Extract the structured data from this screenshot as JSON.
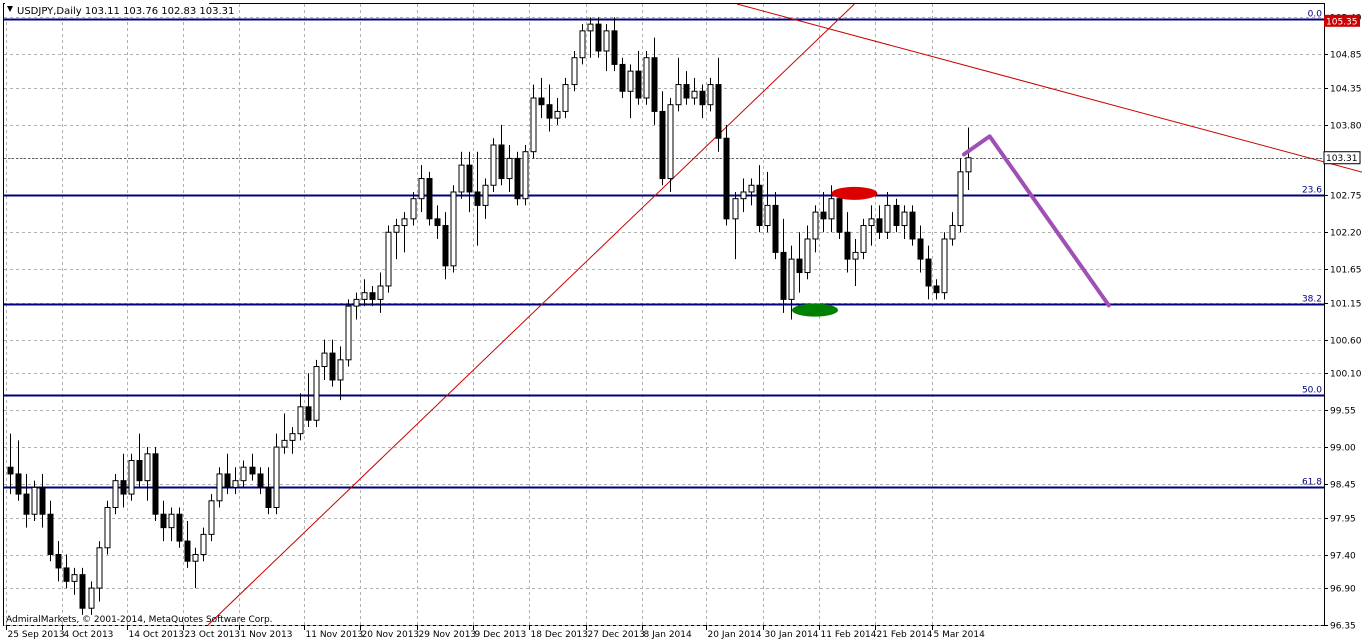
{
  "chart_data": {
    "type": "candlestick",
    "symbol_header": "USDJPY,Daily  103.11 103.76 102.83 103.31",
    "copyright": "AdmiralMarkets, © 2001-2014, MetaQuotes Software Corp.",
    "current_price_label": "103.31",
    "high_price_label": "105.35",
    "ylim": [
      96.35,
      105.6
    ],
    "y_ticks": [
      "105.40",
      "104.85",
      "104.35",
      "103.80",
      "103.31",
      "102.75",
      "102.20",
      "101.65",
      "101.15",
      "100.60",
      "100.10",
      "99.55",
      "99.00",
      "98.45",
      "97.95",
      "97.40",
      "96.90",
      "96.35"
    ],
    "x_ticks": [
      {
        "label": "25 Sep 2013",
        "bar": 0
      },
      {
        "label": "4 Oct 2013",
        "bar": 7
      },
      {
        "label": "14 Oct 2013",
        "bar": 15
      },
      {
        "label": "23 Oct 2013",
        "bar": 22
      },
      {
        "label": "1 Nov 2013",
        "bar": 29
      },
      {
        "label": "11 Nov 2013",
        "bar": 37
      },
      {
        "label": "20 Nov 2013",
        "bar": 44
      },
      {
        "label": "29 Nov 2013",
        "bar": 51
      },
      {
        "label": "9 Dec 2013",
        "bar": 58
      },
      {
        "label": "18 Dec 2013",
        "bar": 65
      },
      {
        "label": "27 Dec 2013",
        "bar": 72
      },
      {
        "label": "8 Jan 2014",
        "bar": 79
      },
      {
        "label": "20 Jan 2014",
        "bar": 87
      },
      {
        "label": "30 Jan 2014",
        "bar": 94
      },
      {
        "label": "11 Feb 2014",
        "bar": 101
      },
      {
        "label": "21 Feb 2014",
        "bar": 108
      },
      {
        "label": "5 Mar 2014",
        "bar": 115
      }
    ],
    "fib_levels": [
      {
        "label": "0.0",
        "price": 105.38
      },
      {
        "label": "23.6",
        "price": 102.76
      },
      {
        "label": "38.2",
        "price": 101.13
      },
      {
        "label": "50.0",
        "price": 99.77
      },
      {
        "label": "61.8",
        "price": 98.41
      }
    ],
    "candles": [
      [
        98.7,
        99.2,
        98.3,
        98.6
      ],
      [
        98.6,
        99.1,
        98.2,
        98.3
      ],
      [
        98.3,
        98.6,
        97.8,
        98.0
      ],
      [
        98.0,
        98.5,
        97.9,
        98.4
      ],
      [
        98.4,
        98.6,
        97.8,
        98.0
      ],
      [
        98.0,
        98.2,
        97.3,
        97.4
      ],
      [
        97.4,
        97.6,
        97.0,
        97.2
      ],
      [
        97.2,
        97.4,
        96.9,
        97.0
      ],
      [
        97.0,
        97.2,
        96.8,
        97.1
      ],
      [
        97.1,
        97.2,
        96.5,
        96.6
      ],
      [
        96.6,
        97.0,
        96.5,
        96.9
      ],
      [
        96.9,
        97.6,
        96.7,
        97.5
      ],
      [
        97.5,
        98.2,
        97.4,
        98.1
      ],
      [
        98.1,
        98.6,
        98.0,
        98.5
      ],
      [
        98.5,
        98.9,
        98.1,
        98.3
      ],
      [
        98.3,
        98.9,
        98.2,
        98.8
      ],
      [
        98.8,
        99.2,
        98.4,
        98.5
      ],
      [
        98.5,
        99.0,
        98.2,
        98.9
      ],
      [
        98.9,
        99.0,
        97.9,
        98.0
      ],
      [
        98.0,
        98.2,
        97.6,
        97.8
      ],
      [
        97.8,
        98.1,
        97.6,
        98.0
      ],
      [
        98.0,
        98.1,
        97.5,
        97.6
      ],
      [
        97.6,
        97.9,
        97.2,
        97.3
      ],
      [
        97.3,
        97.5,
        96.9,
        97.4
      ],
      [
        97.4,
        97.8,
        97.3,
        97.7
      ],
      [
        97.7,
        98.3,
        97.6,
        98.2
      ],
      [
        98.2,
        98.7,
        98.1,
        98.6
      ],
      [
        98.6,
        98.9,
        98.3,
        98.4
      ],
      [
        98.4,
        98.7,
        98.3,
        98.5
      ],
      [
        98.5,
        98.8,
        98.4,
        98.7
      ],
      [
        98.7,
        98.9,
        98.5,
        98.6
      ],
      [
        98.6,
        98.7,
        98.3,
        98.4
      ],
      [
        98.4,
        98.7,
        98.0,
        98.1
      ],
      [
        98.1,
        99.2,
        98.0,
        99.0
      ],
      [
        99.0,
        99.5,
        98.9,
        99.1
      ],
      [
        99.1,
        99.3,
        98.9,
        99.2
      ],
      [
        99.2,
        99.8,
        99.1,
        99.6
      ],
      [
        99.6,
        100.1,
        99.3,
        99.4
      ],
      [
        99.4,
        100.3,
        99.3,
        100.2
      ],
      [
        100.2,
        100.6,
        100.0,
        100.4
      ],
      [
        100.4,
        100.6,
        99.9,
        100.0
      ],
      [
        100.0,
        100.5,
        99.7,
        100.3
      ],
      [
        100.3,
        101.2,
        100.2,
        101.1
      ],
      [
        101.1,
        101.3,
        100.9,
        101.2
      ],
      [
        101.2,
        101.5,
        101.1,
        101.3
      ],
      [
        101.3,
        101.4,
        101.1,
        101.2
      ],
      [
        101.2,
        101.6,
        101.0,
        101.4
      ],
      [
        101.4,
        102.3,
        101.3,
        102.2
      ],
      [
        102.2,
        102.4,
        101.8,
        102.3
      ],
      [
        102.3,
        102.5,
        101.9,
        102.4
      ],
      [
        102.4,
        102.8,
        102.3,
        102.7
      ],
      [
        102.7,
        103.2,
        102.5,
        103.0
      ],
      [
        103.0,
        103.1,
        102.3,
        102.4
      ],
      [
        102.4,
        102.6,
        102.1,
        102.3
      ],
      [
        102.3,
        102.5,
        101.5,
        101.7
      ],
      [
        101.7,
        102.9,
        101.6,
        102.8
      ],
      [
        102.8,
        103.4,
        102.7,
        103.2
      ],
      [
        103.2,
        103.4,
        102.5,
        102.8
      ],
      [
        102.8,
        103.4,
        102.0,
        102.6
      ],
      [
        102.6,
        103.0,
        102.4,
        102.9
      ],
      [
        102.9,
        103.6,
        102.8,
        103.5
      ],
      [
        103.5,
        103.8,
        102.9,
        103.0
      ],
      [
        103.0,
        103.5,
        102.8,
        103.3
      ],
      [
        103.3,
        103.4,
        102.6,
        102.7
      ],
      [
        102.7,
        103.5,
        102.6,
        103.4
      ],
      [
        103.4,
        104.4,
        103.3,
        104.2
      ],
      [
        104.2,
        104.5,
        103.9,
        104.1
      ],
      [
        104.1,
        104.4,
        103.7,
        103.9
      ],
      [
        103.9,
        104.2,
        103.8,
        104.0
      ],
      [
        104.0,
        104.5,
        103.9,
        104.4
      ],
      [
        104.4,
        104.9,
        104.3,
        104.8
      ],
      [
        104.8,
        105.3,
        104.7,
        105.2
      ],
      [
        105.2,
        105.4,
        104.8,
        105.3
      ],
      [
        105.3,
        105.4,
        104.8,
        104.9
      ],
      [
        104.9,
        105.3,
        104.6,
        105.2
      ],
      [
        105.2,
        105.4,
        104.6,
        104.7
      ],
      [
        104.7,
        104.8,
        104.2,
        104.3
      ],
      [
        104.3,
        104.7,
        103.9,
        104.6
      ],
      [
        104.6,
        104.9,
        104.1,
        104.2
      ],
      [
        104.2,
        104.9,
        104.1,
        104.8
      ],
      [
        104.8,
        105.1,
        103.8,
        104.0
      ],
      [
        104.0,
        104.3,
        102.9,
        103.0
      ],
      [
        103.0,
        104.2,
        102.8,
        104.1
      ],
      [
        104.1,
        104.8,
        104.0,
        104.4
      ],
      [
        104.4,
        104.6,
        104.1,
        104.2
      ],
      [
        104.2,
        104.5,
        104.1,
        104.3
      ],
      [
        104.3,
        104.4,
        103.9,
        104.1
      ],
      [
        104.1,
        104.5,
        104.0,
        104.4
      ],
      [
        104.4,
        104.8,
        103.4,
        103.6
      ],
      [
        103.6,
        103.8,
        102.3,
        102.4
      ],
      [
        102.4,
        102.8,
        101.8,
        102.7
      ],
      [
        102.7,
        103.0,
        102.5,
        102.8
      ],
      [
        102.8,
        103.0,
        102.6,
        102.9
      ],
      [
        102.9,
        103.2,
        102.2,
        102.3
      ],
      [
        102.3,
        103.1,
        102.2,
        102.6
      ],
      [
        102.6,
        102.8,
        101.8,
        101.9
      ],
      [
        101.9,
        102.4,
        101.0,
        101.2
      ],
      [
        101.2,
        102.0,
        100.9,
        101.8
      ],
      [
        101.8,
        102.2,
        101.3,
        101.6
      ],
      [
        101.6,
        102.3,
        101.5,
        102.1
      ],
      [
        102.1,
        102.6,
        101.9,
        102.5
      ],
      [
        102.5,
        102.8,
        102.2,
        102.4
      ],
      [
        102.4,
        102.9,
        102.2,
        102.7
      ],
      [
        102.7,
        102.8,
        102.1,
        102.2
      ],
      [
        102.2,
        102.5,
        101.6,
        101.8
      ],
      [
        101.8,
        102.1,
        101.4,
        101.9
      ],
      [
        101.9,
        102.4,
        101.8,
        102.3
      ],
      [
        102.3,
        102.6,
        102.0,
        102.4
      ],
      [
        102.4,
        102.6,
        102.1,
        102.2
      ],
      [
        102.2,
        102.8,
        102.1,
        102.6
      ],
      [
        102.6,
        102.7,
        102.2,
        102.3
      ],
      [
        102.3,
        102.6,
        102.1,
        102.5
      ],
      [
        102.5,
        102.6,
        102.0,
        102.1
      ],
      [
        102.1,
        102.3,
        101.6,
        101.8
      ],
      [
        101.8,
        102.0,
        101.2,
        101.4
      ],
      [
        101.4,
        101.5,
        101.2,
        101.3
      ],
      [
        101.3,
        102.2,
        101.2,
        102.1
      ],
      [
        102.1,
        102.5,
        102.0,
        102.3
      ],
      [
        102.3,
        103.3,
        102.2,
        103.1
      ],
      [
        103.1,
        103.76,
        102.83,
        103.31
      ]
    ],
    "trendlines": [
      {
        "color": "#cc0000",
        "from": {
          "bar": 24.6,
          "price": 96.35
        },
        "to": {
          "bar": 104.9,
          "price": 105.6
        }
      },
      {
        "color": "#cc0000",
        "from": {
          "bar": 90.3,
          "price": 105.6
        },
        "to": {
          "bar": 191.7,
          "price": 102.33
        }
      }
    ],
    "forecast_path": [
      {
        "bar": 118.5,
        "price": 103.36
      },
      {
        "bar": 121.7,
        "price": 103.63
      },
      {
        "bar": 136.5,
        "price": 101.11
      }
    ],
    "markers": [
      {
        "color": "#dd0000",
        "bar": 104.9,
        "price": 102.78
      },
      {
        "color": "#008000",
        "bar": 100.0,
        "price": 101.04
      }
    ],
    "colors": {
      "fib_line": "#00007a",
      "grid": "#b0b0b0",
      "trendline": "#cc0000",
      "forecast": "#a050b4",
      "price_tag_bg": "#cc0000"
    }
  }
}
